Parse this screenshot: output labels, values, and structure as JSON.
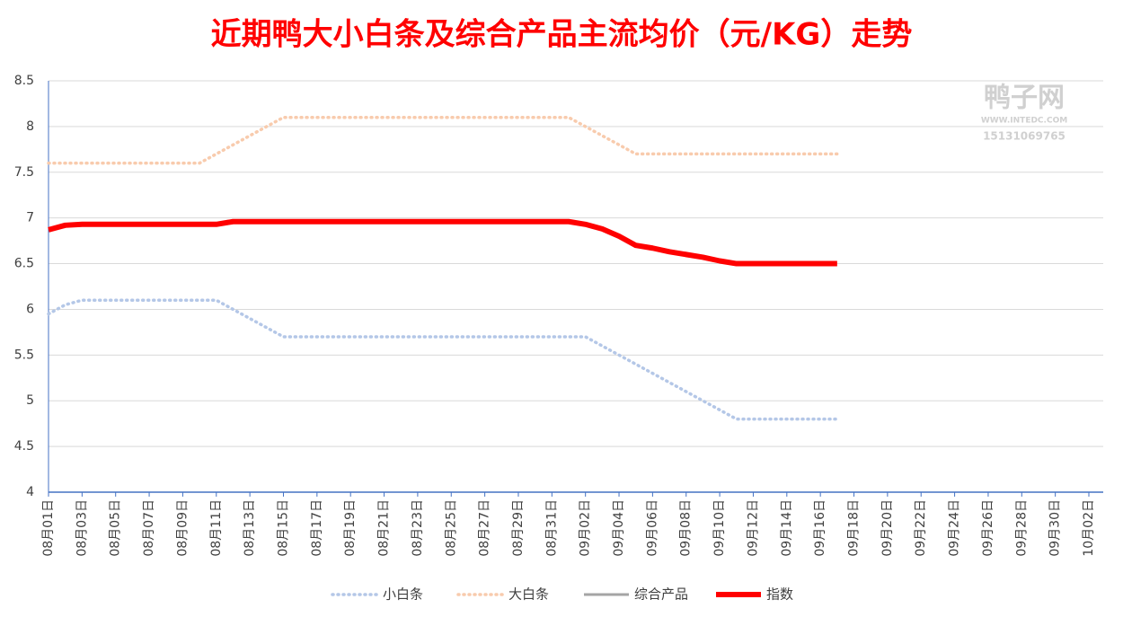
{
  "chart_data": {
    "type": "line",
    "title": "近期鸭大小白条及综合产品主流均价（元/KG）走势",
    "watermark": {
      "name": "鸭子网",
      "site": "WWW.INTEDC.COM",
      "phone": "15131069765"
    },
    "categories": [
      "08月01日",
      null,
      "08月03日",
      null,
      "08月05日",
      null,
      "08月07日",
      null,
      "08月09日",
      null,
      "08月11日",
      null,
      "08月13日",
      null,
      "08月15日",
      null,
      "08月17日",
      null,
      "08月19日",
      null,
      "08月21日",
      null,
      "08月23日",
      null,
      "08月25日",
      null,
      "08月27日",
      null,
      "08月29日",
      null,
      "08月31日",
      null,
      "09月02日",
      null,
      "09月04日",
      null,
      "09月06日",
      null,
      "09月08日",
      null,
      "09月10日",
      null,
      "09月12日",
      null,
      "09月14日",
      null,
      "09月16日",
      null,
      "09月18日",
      null,
      "09月20日",
      null,
      "09月22日",
      null,
      "09月24日",
      null,
      "09月26日",
      null,
      "09月28日",
      null,
      "09月30日",
      null,
      "10月02日"
    ],
    "series": [
      {
        "name": "小白条",
        "color": "#b4c7e7",
        "line_style": "dotted",
        "values": [
          5.95,
          6.05,
          6.1,
          6.1,
          6.1,
          6.1,
          6.1,
          6.1,
          6.1,
          6.1,
          6.1,
          6.0,
          5.9,
          5.8,
          5.7,
          5.7,
          5.7,
          5.7,
          5.7,
          5.7,
          5.7,
          5.7,
          5.7,
          5.7,
          5.7,
          5.7,
          5.7,
          5.7,
          5.7,
          5.7,
          5.7,
          5.7,
          5.7,
          5.6,
          5.5,
          5.4,
          5.3,
          5.2,
          5.1,
          5.0,
          4.9,
          4.8,
          4.8,
          4.8,
          4.8,
          4.8,
          4.8,
          4.8,
          null,
          null,
          null,
          null,
          null,
          null,
          null,
          null,
          null,
          null,
          null,
          null,
          null,
          null,
          null
        ]
      },
      {
        "name": "大白条",
        "color": "#f8cbad",
        "line_style": "dotted",
        "values": [
          7.6,
          7.6,
          7.6,
          7.6,
          7.6,
          7.6,
          7.6,
          7.6,
          7.6,
          7.6,
          7.7,
          7.8,
          7.9,
          8.0,
          8.1,
          8.1,
          8.1,
          8.1,
          8.1,
          8.1,
          8.1,
          8.1,
          8.1,
          8.1,
          8.1,
          8.1,
          8.1,
          8.1,
          8.1,
          8.1,
          8.1,
          8.1,
          8.0,
          7.9,
          7.8,
          7.7,
          7.7,
          7.7,
          7.7,
          7.7,
          7.7,
          7.7,
          7.7,
          7.7,
          7.7,
          7.7,
          7.7,
          7.7,
          null,
          null,
          null,
          null,
          null,
          null,
          null,
          null,
          null,
          null,
          null,
          null,
          null,
          null,
          null
        ]
      },
      {
        "name": "综合产品",
        "color": "#a5a5a5",
        "line_style": "solid",
        "values": [
          null,
          null,
          null,
          null,
          null,
          null,
          null,
          null,
          null,
          null,
          null,
          null,
          null,
          null,
          null,
          null,
          null,
          null,
          null,
          null,
          null,
          null,
          null,
          null,
          null,
          null,
          null,
          null,
          null,
          null,
          null,
          null,
          null,
          null,
          null,
          null,
          null,
          null,
          null,
          null,
          null,
          null,
          null,
          null,
          null,
          null,
          null,
          null,
          null,
          null,
          null,
          null,
          null,
          null,
          null,
          null,
          null,
          null,
          null,
          null,
          null,
          null,
          null
        ]
      },
      {
        "name": "指数",
        "color": "#ff0000",
        "line_style": "thick",
        "values": [
          6.87,
          6.92,
          6.93,
          6.93,
          6.93,
          6.93,
          6.93,
          6.93,
          6.93,
          6.93,
          6.93,
          6.96,
          6.96,
          6.96,
          6.96,
          6.96,
          6.96,
          6.96,
          6.96,
          6.96,
          6.96,
          6.96,
          6.96,
          6.96,
          6.96,
          6.96,
          6.96,
          6.96,
          6.96,
          6.96,
          6.96,
          6.96,
          6.93,
          6.88,
          6.8,
          6.7,
          6.67,
          6.63,
          6.6,
          6.57,
          6.53,
          6.5,
          6.5,
          6.5,
          6.5,
          6.5,
          6.5,
          6.5,
          null,
          null,
          null,
          null,
          null,
          null,
          null,
          null,
          null,
          null,
          null,
          null,
          null,
          null,
          null
        ]
      }
    ],
    "ylim": [
      4,
      8.5
    ],
    "yticks": [
      4,
      4.5,
      5,
      5.5,
      6,
      6.5,
      7,
      7.5,
      8,
      8.5
    ],
    "grid": true,
    "legend": "bottom"
  }
}
